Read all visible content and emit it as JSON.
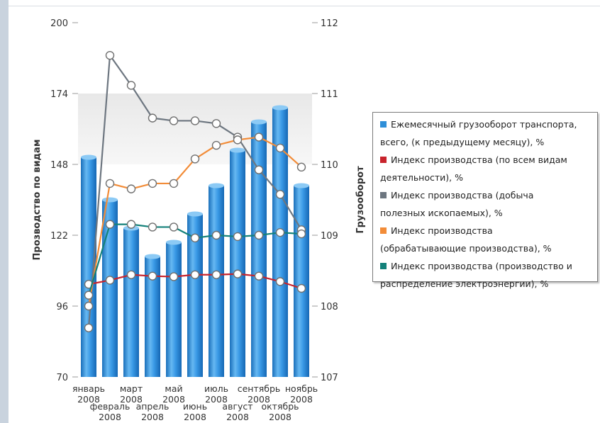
{
  "chart_data": {
    "type": "bar",
    "categories": [
      "январь 2008",
      "февраль 2008",
      "март 2008",
      "апрель 2008",
      "май 2008",
      "июнь 2008",
      "июль 2008",
      "август 2008",
      "сентябрь 2008",
      "октябрь 2008",
      "ноябрь 2008"
    ],
    "category_lines": [
      [
        "январь",
        "2008"
      ],
      [
        "февраль",
        "2008"
      ],
      [
        "март",
        "2008"
      ],
      [
        "апрель",
        "2008"
      ],
      [
        "май",
        "2008"
      ],
      [
        "июнь",
        "2008"
      ],
      [
        "июль",
        "2008"
      ],
      [
        "август",
        "2008"
      ],
      [
        "сентябрь",
        "2008"
      ],
      [
        "октябрь",
        "2008"
      ],
      [
        "ноябрь",
        "2008"
      ]
    ],
    "y_left": {
      "label": "Прозводство по видам",
      "ticks": [
        70,
        96,
        122,
        148,
        174,
        200
      ],
      "range": [
        70,
        200
      ]
    },
    "y_right": {
      "label": "Грузооборот",
      "ticks": [
        107,
        108,
        109,
        110,
        111,
        112
      ],
      "range": [
        107,
        112
      ]
    },
    "series": [
      {
        "name": "Ежемесячный грузооборот транспорта, всего, (к предыдущему месяцу), %",
        "type": "bar",
        "axis": "right",
        "color": "#2f8fd8",
        "values": [
          110.1,
          109.5,
          109.1,
          108.7,
          108.9,
          109.3,
          109.7,
          110.2,
          110.6,
          110.8,
          109.7
        ]
      },
      {
        "name": "Индекс производства (по всем видам деятельности), %",
        "type": "line",
        "axis": "left",
        "color": "#c8232c",
        "values": [
          104,
          105.5,
          107.5,
          107,
          106.8,
          107.5,
          107.5,
          107.8,
          107,
          105,
          102.5
        ]
      },
      {
        "name": "Индекс производства (добыча полезных ископаемых), %",
        "type": "line",
        "axis": "left",
        "color": "#6d7680",
        "values": [
          88,
          188,
          177,
          165,
          164,
          164,
          163,
          158,
          146,
          137,
          124
        ]
      },
      {
        "name": "Индекс производства (обрабатывающие производства), %",
        "type": "line",
        "axis": "left",
        "color": "#f28c38",
        "values": [
          96,
          141,
          139,
          141,
          141,
          150,
          155,
          157,
          158,
          154,
          147
        ]
      },
      {
        "name": "Индекс производства (производство и распределение электроэнергии), %",
        "type": "line",
        "axis": "left",
        "color": "#14817a",
        "values": [
          100,
          126,
          126,
          125,
          125,
          121,
          122,
          121.5,
          122,
          123,
          122.5
        ]
      }
    ],
    "legend_position": "right",
    "grid": false
  },
  "legend_items": [
    {
      "label_lines": [
        "Ежемесячный грузооборот транспорта,",
        "всего, (к предыдущему месяцу), %"
      ],
      "color": "#2f8fd8"
    },
    {
      "label_lines": [
        "Индекс производства (по всем видам",
        "деятельности), %"
      ],
      "color": "#c8232c"
    },
    {
      "label_lines": [
        "Индекс производства (добыча",
        "полезных ископаемых), %"
      ],
      "color": "#6d7680"
    },
    {
      "label_lines": [
        "Индекс производства",
        "(обрабатывающие производства), %"
      ],
      "color": "#f28c38"
    },
    {
      "label_lines": [
        "Индекс производства (производство и",
        "распределение электроэнергии), %"
      ],
      "color": "#14817a"
    }
  ]
}
